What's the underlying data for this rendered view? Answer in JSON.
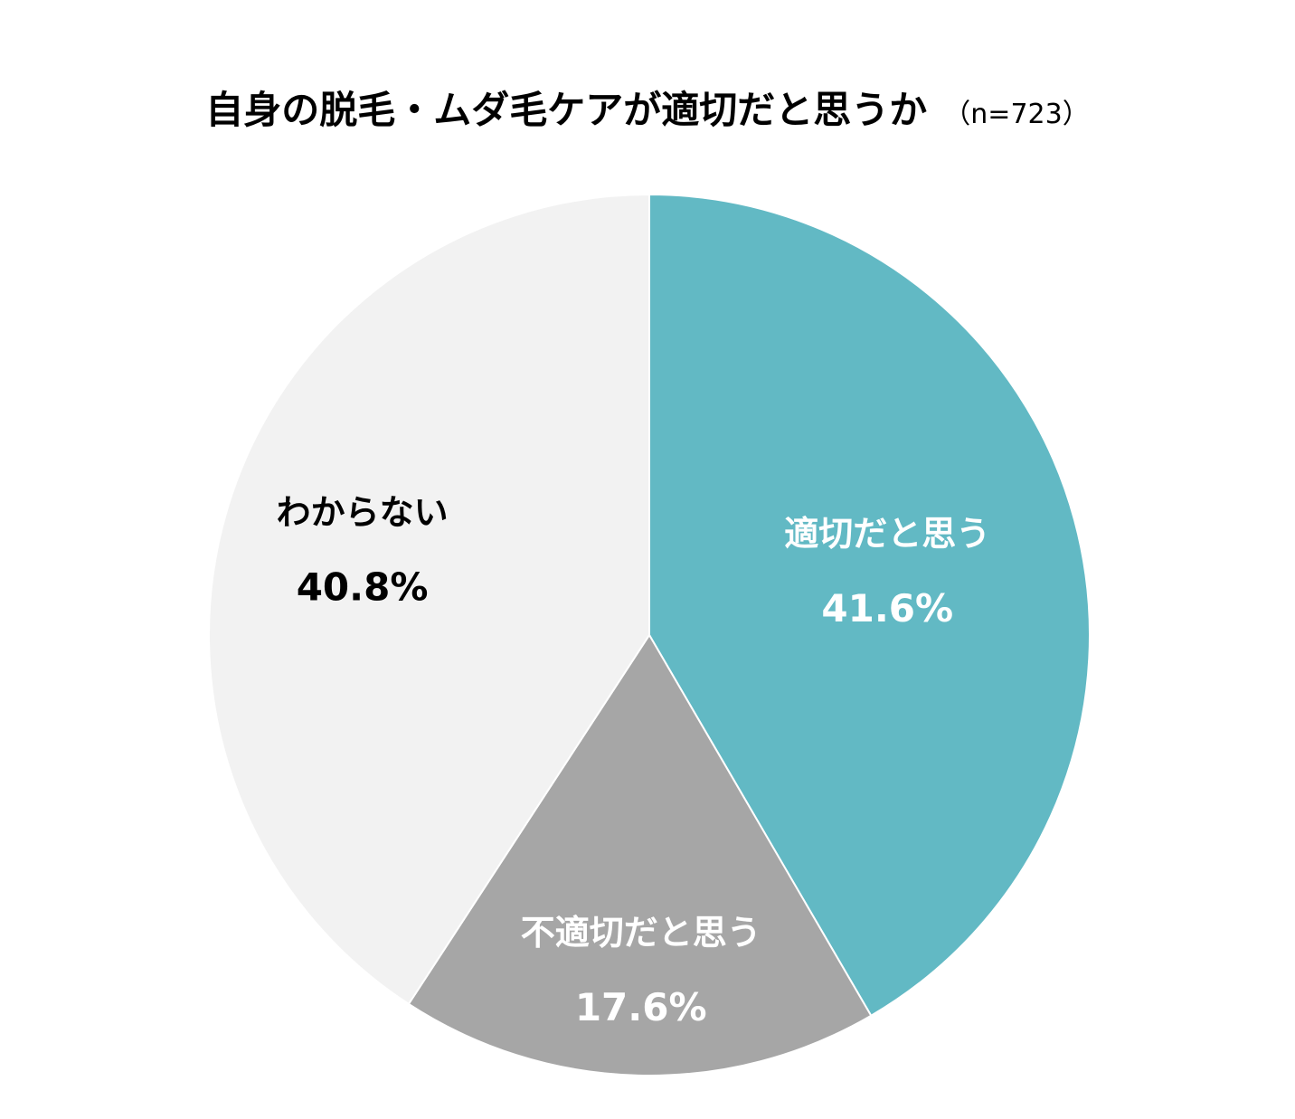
{
  "chart_data": {
    "type": "pie",
    "title": "自身の脱毛・ムダ毛ケアが適切だと思うか",
    "subtitle": "（n=723）",
    "start_angle_deg": 0,
    "direction": "clockwise",
    "slices": [
      {
        "label": "適切だと思う",
        "value": 41.6,
        "value_label": "41.6%",
        "color": "#62b9c4",
        "text_color": "#ffffff"
      },
      {
        "label": "不適切だと思う",
        "value": 17.6,
        "value_label": "17.6%",
        "color": "#a6a6a6",
        "text_color": "#ffffff"
      },
      {
        "label": "わからない",
        "value": 40.8,
        "value_label": "40.8%",
        "color": "#f2f2f2",
        "text_color": "#000000"
      }
    ]
  }
}
